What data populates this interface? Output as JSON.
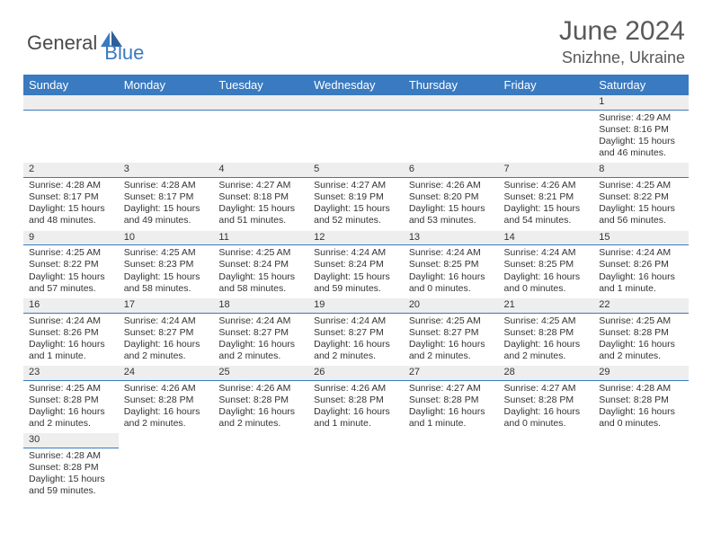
{
  "logo": {
    "general": "General",
    "blue": "Blue"
  },
  "title": {
    "month": "June 2024",
    "location": "Snizhne, Ukraine"
  },
  "colors": {
    "header_bg": "#3a7ac0",
    "header_fg": "#ffffff",
    "daynum_bg": "#eeeeee",
    "rule": "#3a7ac0",
    "title_fg": "#595959"
  },
  "weekdays": [
    "Sunday",
    "Monday",
    "Tuesday",
    "Wednesday",
    "Thursday",
    "Friday",
    "Saturday"
  ],
  "weeks": [
    [
      null,
      null,
      null,
      null,
      null,
      null,
      {
        "n": "1",
        "sr": "Sunrise: 4:29 AM",
        "ss": "Sunset: 8:16 PM",
        "d1": "Daylight: 15 hours",
        "d2": "and 46 minutes."
      }
    ],
    [
      {
        "n": "2",
        "sr": "Sunrise: 4:28 AM",
        "ss": "Sunset: 8:17 PM",
        "d1": "Daylight: 15 hours",
        "d2": "and 48 minutes."
      },
      {
        "n": "3",
        "sr": "Sunrise: 4:28 AM",
        "ss": "Sunset: 8:17 PM",
        "d1": "Daylight: 15 hours",
        "d2": "and 49 minutes."
      },
      {
        "n": "4",
        "sr": "Sunrise: 4:27 AM",
        "ss": "Sunset: 8:18 PM",
        "d1": "Daylight: 15 hours",
        "d2": "and 51 minutes."
      },
      {
        "n": "5",
        "sr": "Sunrise: 4:27 AM",
        "ss": "Sunset: 8:19 PM",
        "d1": "Daylight: 15 hours",
        "d2": "and 52 minutes."
      },
      {
        "n": "6",
        "sr": "Sunrise: 4:26 AM",
        "ss": "Sunset: 8:20 PM",
        "d1": "Daylight: 15 hours",
        "d2": "and 53 minutes."
      },
      {
        "n": "7",
        "sr": "Sunrise: 4:26 AM",
        "ss": "Sunset: 8:21 PM",
        "d1": "Daylight: 15 hours",
        "d2": "and 54 minutes."
      },
      {
        "n": "8",
        "sr": "Sunrise: 4:25 AM",
        "ss": "Sunset: 8:22 PM",
        "d1": "Daylight: 15 hours",
        "d2": "and 56 minutes."
      }
    ],
    [
      {
        "n": "9",
        "sr": "Sunrise: 4:25 AM",
        "ss": "Sunset: 8:22 PM",
        "d1": "Daylight: 15 hours",
        "d2": "and 57 minutes."
      },
      {
        "n": "10",
        "sr": "Sunrise: 4:25 AM",
        "ss": "Sunset: 8:23 PM",
        "d1": "Daylight: 15 hours",
        "d2": "and 58 minutes."
      },
      {
        "n": "11",
        "sr": "Sunrise: 4:25 AM",
        "ss": "Sunset: 8:24 PM",
        "d1": "Daylight: 15 hours",
        "d2": "and 58 minutes."
      },
      {
        "n": "12",
        "sr": "Sunrise: 4:24 AM",
        "ss": "Sunset: 8:24 PM",
        "d1": "Daylight: 15 hours",
        "d2": "and 59 minutes."
      },
      {
        "n": "13",
        "sr": "Sunrise: 4:24 AM",
        "ss": "Sunset: 8:25 PM",
        "d1": "Daylight: 16 hours",
        "d2": "and 0 minutes."
      },
      {
        "n": "14",
        "sr": "Sunrise: 4:24 AM",
        "ss": "Sunset: 8:25 PM",
        "d1": "Daylight: 16 hours",
        "d2": "and 0 minutes."
      },
      {
        "n": "15",
        "sr": "Sunrise: 4:24 AM",
        "ss": "Sunset: 8:26 PM",
        "d1": "Daylight: 16 hours",
        "d2": "and 1 minute."
      }
    ],
    [
      {
        "n": "16",
        "sr": "Sunrise: 4:24 AM",
        "ss": "Sunset: 8:26 PM",
        "d1": "Daylight: 16 hours",
        "d2": "and 1 minute."
      },
      {
        "n": "17",
        "sr": "Sunrise: 4:24 AM",
        "ss": "Sunset: 8:27 PM",
        "d1": "Daylight: 16 hours",
        "d2": "and 2 minutes."
      },
      {
        "n": "18",
        "sr": "Sunrise: 4:24 AM",
        "ss": "Sunset: 8:27 PM",
        "d1": "Daylight: 16 hours",
        "d2": "and 2 minutes."
      },
      {
        "n": "19",
        "sr": "Sunrise: 4:24 AM",
        "ss": "Sunset: 8:27 PM",
        "d1": "Daylight: 16 hours",
        "d2": "and 2 minutes."
      },
      {
        "n": "20",
        "sr": "Sunrise: 4:25 AM",
        "ss": "Sunset: 8:27 PM",
        "d1": "Daylight: 16 hours",
        "d2": "and 2 minutes."
      },
      {
        "n": "21",
        "sr": "Sunrise: 4:25 AM",
        "ss": "Sunset: 8:28 PM",
        "d1": "Daylight: 16 hours",
        "d2": "and 2 minutes."
      },
      {
        "n": "22",
        "sr": "Sunrise: 4:25 AM",
        "ss": "Sunset: 8:28 PM",
        "d1": "Daylight: 16 hours",
        "d2": "and 2 minutes."
      }
    ],
    [
      {
        "n": "23",
        "sr": "Sunrise: 4:25 AM",
        "ss": "Sunset: 8:28 PM",
        "d1": "Daylight: 16 hours",
        "d2": "and 2 minutes."
      },
      {
        "n": "24",
        "sr": "Sunrise: 4:26 AM",
        "ss": "Sunset: 8:28 PM",
        "d1": "Daylight: 16 hours",
        "d2": "and 2 minutes."
      },
      {
        "n": "25",
        "sr": "Sunrise: 4:26 AM",
        "ss": "Sunset: 8:28 PM",
        "d1": "Daylight: 16 hours",
        "d2": "and 2 minutes."
      },
      {
        "n": "26",
        "sr": "Sunrise: 4:26 AM",
        "ss": "Sunset: 8:28 PM",
        "d1": "Daylight: 16 hours",
        "d2": "and 1 minute."
      },
      {
        "n": "27",
        "sr": "Sunrise: 4:27 AM",
        "ss": "Sunset: 8:28 PM",
        "d1": "Daylight: 16 hours",
        "d2": "and 1 minute."
      },
      {
        "n": "28",
        "sr": "Sunrise: 4:27 AM",
        "ss": "Sunset: 8:28 PM",
        "d1": "Daylight: 16 hours",
        "d2": "and 0 minutes."
      },
      {
        "n": "29",
        "sr": "Sunrise: 4:28 AM",
        "ss": "Sunset: 8:28 PM",
        "d1": "Daylight: 16 hours",
        "d2": "and 0 minutes."
      }
    ],
    [
      {
        "n": "30",
        "sr": "Sunrise: 4:28 AM",
        "ss": "Sunset: 8:28 PM",
        "d1": "Daylight: 15 hours",
        "d2": "and 59 minutes."
      },
      null,
      null,
      null,
      null,
      null,
      null
    ]
  ]
}
